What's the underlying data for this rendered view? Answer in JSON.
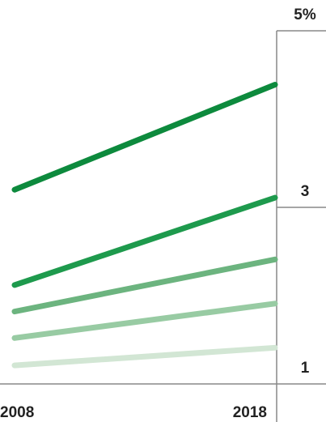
{
  "chart_data": {
    "type": "line",
    "x": [
      2008,
      2018
    ],
    "xlim": [
      2008,
      2018
    ],
    "series": [
      {
        "color": "#0d8a3d",
        "values": [
          3.2,
          4.39
        ]
      },
      {
        "color": "#1e9a4d",
        "values": [
          2.12,
          3.11
        ]
      },
      {
        "color": "#6cb47f",
        "values": [
          1.82,
          2.41
        ]
      },
      {
        "color": "#98cba3",
        "values": [
          1.52,
          1.91
        ]
      },
      {
        "color": "#d2e6d4",
        "values": [
          1.21,
          1.41
        ]
      }
    ],
    "ylim": [
      1,
      5
    ],
    "yticks": [
      1,
      3,
      {
        "value": 5,
        "label": "5%"
      }
    ]
  }
}
